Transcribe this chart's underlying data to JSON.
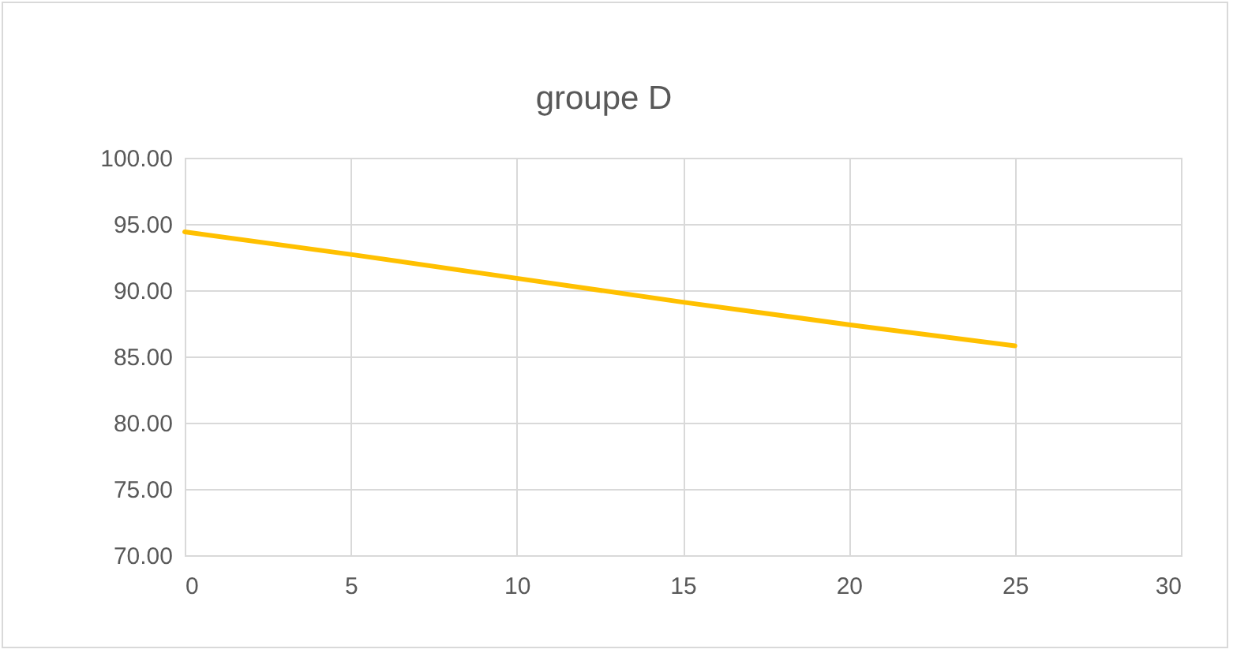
{
  "chart_data": {
    "type": "line",
    "title": "groupe D",
    "x": [
      0,
      5,
      10,
      15,
      20,
      25
    ],
    "series": [
      {
        "color": "#ffc000",
        "values": [
          94.4,
          92.7,
          90.9,
          89.1,
          87.4,
          85.8
        ]
      }
    ],
    "xlim": [
      0,
      30
    ],
    "xticks": [
      0,
      5,
      10,
      15,
      20,
      25,
      30
    ],
    "ylim": [
      70,
      100
    ],
    "yticks": [
      {
        "value": 70,
        "label": "70.00"
      },
      {
        "value": 75,
        "label": "75.00"
      },
      {
        "value": 80,
        "label": "80.00"
      },
      {
        "value": 85,
        "label": "85.00"
      },
      {
        "value": 90,
        "label": "90.00"
      },
      {
        "value": 95,
        "label": "95.00"
      },
      {
        "value": 100,
        "label": "100.00"
      }
    ],
    "grid": true,
    "marker": "none",
    "line_style": "solid"
  }
}
